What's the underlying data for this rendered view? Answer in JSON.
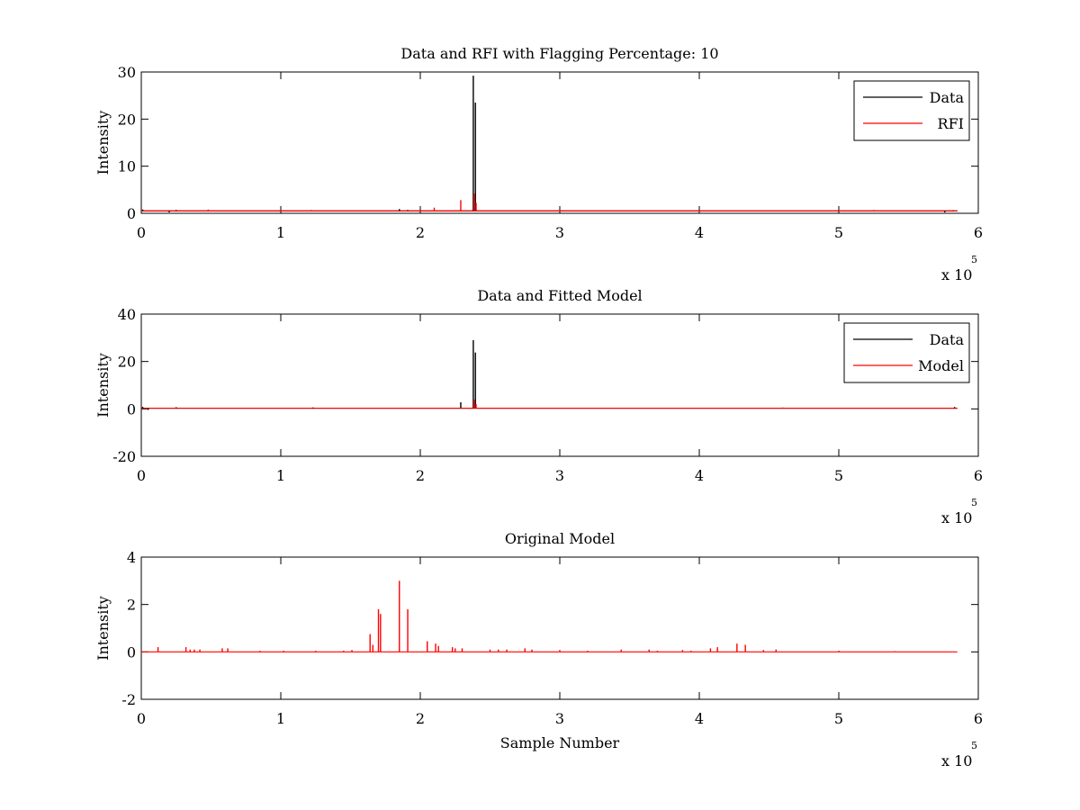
{
  "colors": {
    "data": "#000000",
    "rfi": "#ff0000",
    "model": "#ff0000",
    "axis": "#000000"
  },
  "chart_data": [
    {
      "type": "line",
      "title": "Data and RFI with Flagging Percentage: 10",
      "xlabel": "",
      "ylabel": "Intensity",
      "xlim": [
        0,
        600000
      ],
      "ylim": [
        0,
        30
      ],
      "xticks": [
        "0",
        "1",
        "2",
        "3",
        "4",
        "5",
        "6"
      ],
      "yticks": [
        "0",
        "10",
        "20",
        "30"
      ],
      "x_exponent": {
        "base": "x 10",
        "power": "5"
      },
      "grid": false,
      "legend": {
        "position": "top-right",
        "entries": [
          "Data",
          "RFI"
        ]
      },
      "baseline": {
        "from": 0,
        "to": 585000,
        "value": 0.5
      },
      "series": [
        {
          "name": "Data",
          "color": "#000000",
          "spikes": [
            [
              1000,
              0.8
            ],
            [
              20000,
              0.2
            ],
            [
              25000,
              0.7
            ],
            [
              185000,
              0.9
            ],
            [
              191000,
              0.7
            ],
            [
              238000,
              29.2
            ],
            [
              239500,
              23.5
            ],
            [
              576000,
              0.2
            ],
            [
              582000,
              0.6
            ]
          ]
        },
        {
          "name": "RFI",
          "color": "#ff0000",
          "spikes": [
            [
              48000,
              0.8
            ],
            [
              122000,
              0.7
            ],
            [
              210000,
              1.2
            ],
            [
              229000,
              2.8
            ],
            [
              238500,
              4.2
            ],
            [
              240000,
              2.2
            ],
            [
              525000,
              0.7
            ]
          ]
        }
      ]
    },
    {
      "type": "line",
      "title": "Data and Fitted Model",
      "xlabel": "",
      "ylabel": "Intensity",
      "xlim": [
        0,
        600000
      ],
      "ylim": [
        -20,
        40
      ],
      "xticks": [
        "0",
        "1",
        "2",
        "3",
        "4",
        "5",
        "6"
      ],
      "yticks": [
        "-20",
        "0",
        "20",
        "40"
      ],
      "x_exponent": {
        "base": "x 10",
        "power": "5"
      },
      "grid": false,
      "legend": {
        "position": "top-right",
        "entries": [
          "Data",
          "Model"
        ]
      },
      "baseline": {
        "from": 0,
        "to": 585000,
        "value": 0.3
      },
      "series": [
        {
          "name": "Data",
          "color": "#000000",
          "spikes": [
            [
              1000,
              0.9
            ],
            [
              5000,
              -0.4
            ],
            [
              25000,
              0.7
            ],
            [
              123000,
              0.6
            ],
            [
              229000,
              2.8
            ],
            [
              238000,
              29.0
            ],
            [
              239500,
              23.8
            ],
            [
              583000,
              0.8
            ]
          ]
        },
        {
          "name": "Model",
          "color": "#ff0000",
          "spikes": [
            [
              238500,
              4.0
            ],
            [
              240000,
              2.0
            ],
            [
              460000,
              0.6
            ],
            [
              540000,
              0.5
            ]
          ]
        }
      ]
    },
    {
      "type": "line",
      "title": "Original Model",
      "xlabel": "Sample Number",
      "ylabel": "Intensity",
      "xlim": [
        0,
        600000
      ],
      "ylim": [
        -2,
        4
      ],
      "xticks": [
        "0",
        "1",
        "2",
        "3",
        "4",
        "5",
        "6"
      ],
      "yticks": [
        "-2",
        "0",
        "2",
        "4"
      ],
      "x_exponent": {
        "base": "x 10",
        "power": "5"
      },
      "grid": false,
      "legend": null,
      "baseline": {
        "from": 0,
        "to": 585000,
        "value": 0
      },
      "series": [
        {
          "name": "",
          "color": "#ff0000",
          "spikes": [
            [
              12000,
              0.2
            ],
            [
              32000,
              0.2
            ],
            [
              35000,
              0.1
            ],
            [
              38000,
              0.1
            ],
            [
              42000,
              0.1
            ],
            [
              58000,
              0.15
            ],
            [
              62000,
              0.15
            ],
            [
              85000,
              0.05
            ],
            [
              102000,
              0.05
            ],
            [
              125000,
              0.05
            ],
            [
              145000,
              0.05
            ],
            [
              151000,
              0.08
            ],
            [
              164000,
              0.75
            ],
            [
              166000,
              0.3
            ],
            [
              170000,
              1.8
            ],
            [
              171500,
              1.6
            ],
            [
              185000,
              3.0
            ],
            [
              191000,
              1.8
            ],
            [
              205000,
              0.45
            ],
            [
              211000,
              0.35
            ],
            [
              213000,
              0.25
            ],
            [
              223000,
              0.2
            ],
            [
              225000,
              0.15
            ],
            [
              230000,
              0.15
            ],
            [
              250000,
              0.1
            ],
            [
              256000,
              0.1
            ],
            [
              262000,
              0.1
            ],
            [
              275000,
              0.15
            ],
            [
              280000,
              0.1
            ],
            [
              300000,
              0.08
            ],
            [
              320000,
              0.05
            ],
            [
              344000,
              0.1
            ],
            [
              364000,
              0.1
            ],
            [
              370000,
              0.05
            ],
            [
              388000,
              0.08
            ],
            [
              394000,
              0.05
            ],
            [
              408000,
              0.15
            ],
            [
              413000,
              0.2
            ],
            [
              427000,
              0.35
            ],
            [
              433000,
              0.3
            ],
            [
              446000,
              0.08
            ],
            [
              455000,
              0.1
            ],
            [
              500000,
              0.05
            ],
            [
              540000,
              0.03
            ]
          ]
        }
      ]
    }
  ]
}
